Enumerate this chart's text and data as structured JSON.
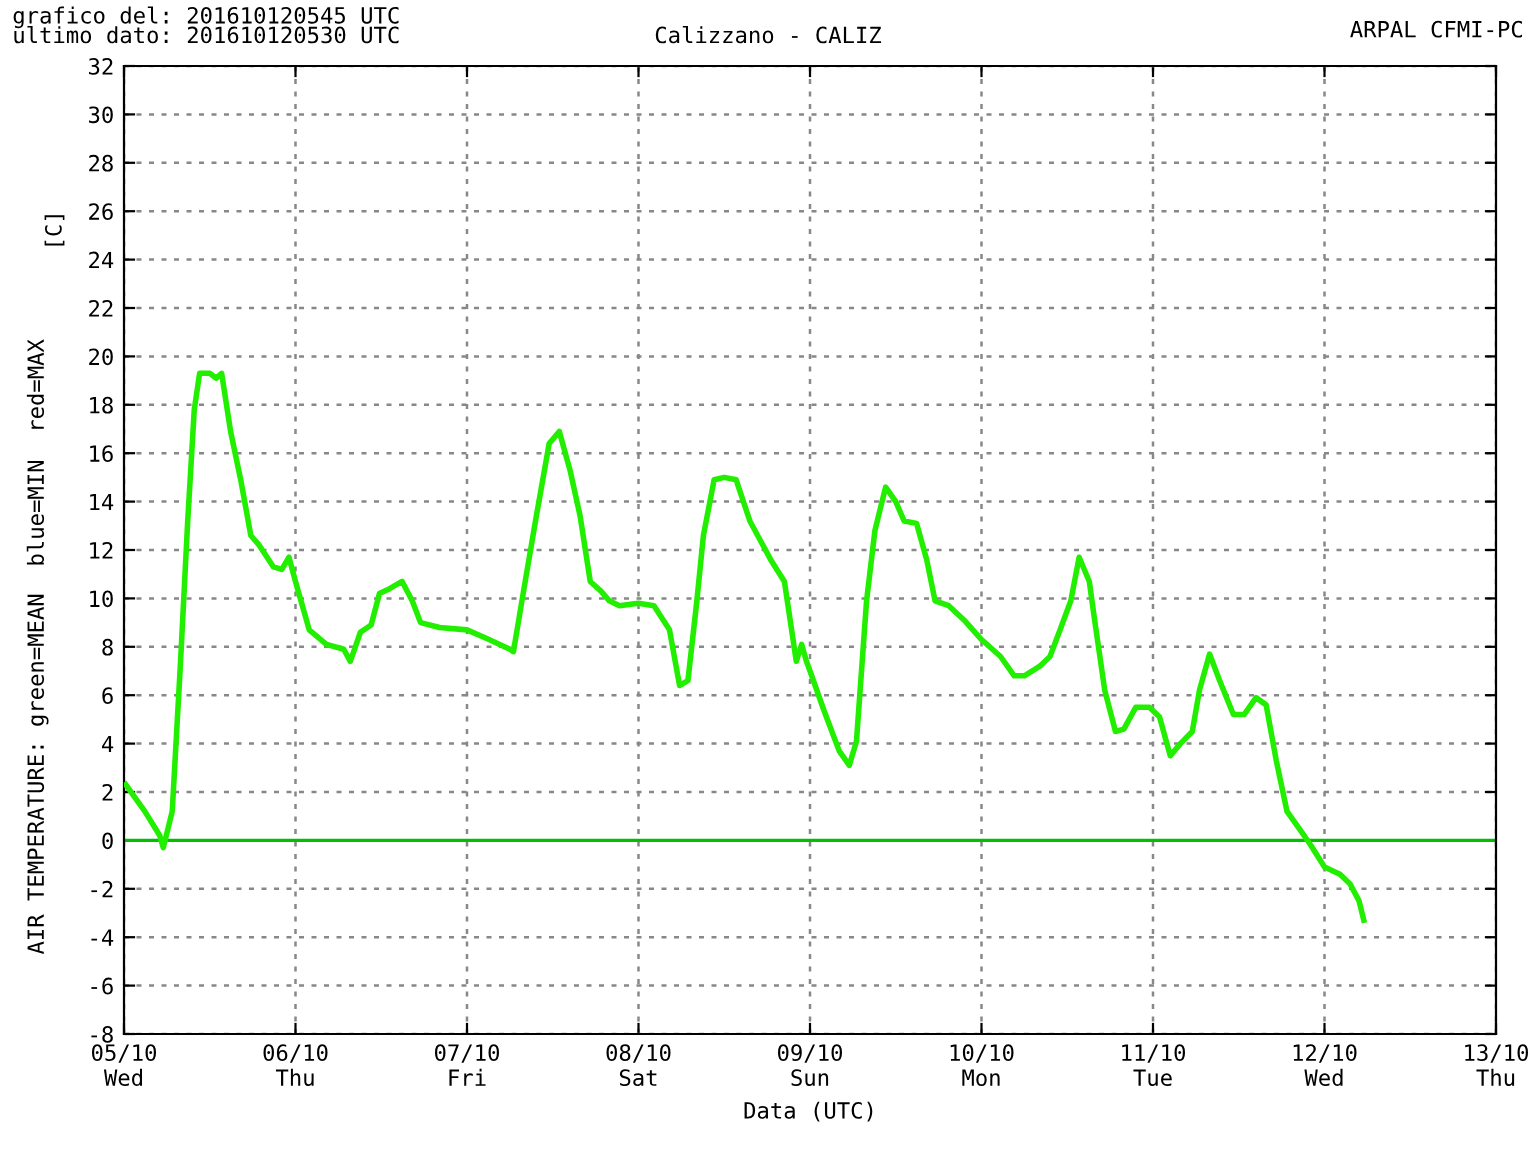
{
  "chart_data": {
    "type": "line",
    "title": "Calizzano - CALIZ",
    "xlabel": "Data (UTC)",
    "ylabel": "AIR TEMPERATURE: green=MEAN  blue=MIN  red=MAX",
    "annotations": [
      "grafico del: 201610120545 UTC",
      "ultimo dato: 201610120530 UTC",
      "ARPAL CFMI-PC",
      "[C]"
    ],
    "x": [
      "2016-10-05T00:15",
      "2016-10-05T02:55",
      "2016-10-05T05:00",
      "2016-10-05T05:30",
      "2016-10-05T06:45",
      "2016-10-05T07:55",
      "2016-10-05T08:55",
      "2016-10-05T09:50",
      "2016-10-05T10:35",
      "2016-10-05T12:00",
      "2016-10-05T12:55",
      "2016-10-05T13:40",
      "2016-10-05T14:55",
      "2016-10-05T16:20",
      "2016-10-05T17:45",
      "2016-10-05T18:55",
      "2016-10-05T20:55",
      "2016-10-05T22:05",
      "2016-10-05T23:05",
      "2016-10-06T00:00",
      "2016-10-06T01:55",
      "2016-10-06T04:20",
      "2016-10-06T06:45",
      "2016-10-06T07:40",
      "2016-10-06T09:05",
      "2016-10-06T10:35",
      "2016-10-06T11:45",
      "2016-10-06T13:10",
      "2016-10-06T14:55",
      "2016-10-06T16:20",
      "2016-10-06T17:30",
      "2016-10-06T20:10",
      "2016-10-07T00:00",
      "2016-10-07T03:05",
      "2016-10-07T06:00",
      "2016-10-07T06:30",
      "2016-10-07T07:55",
      "2016-10-07T09:35",
      "2016-10-07T11:30",
      "2016-10-07T12:55",
      "2016-10-07T14:25",
      "2016-10-07T15:50",
      "2016-10-07T17:15",
      "2016-10-07T18:45",
      "2016-10-07T19:55",
      "2016-10-07T21:20",
      "2016-10-08T00:00",
      "2016-10-08T02:10",
      "2016-10-08T04:20",
      "2016-10-08T05:45",
      "2016-10-08T06:55",
      "2016-10-08T08:10",
      "2016-10-08T09:05",
      "2016-10-08T10:35",
      "2016-10-08T12:00",
      "2016-10-08T13:40",
      "2016-10-08T15:35",
      "2016-10-08T18:30",
      "2016-10-08T20:25",
      "2016-10-08T22:05",
      "2016-10-08T22:50",
      "2016-10-08T23:30",
      "2016-10-09T00:00",
      "2016-10-09T01:55",
      "2016-10-09T04:05",
      "2016-10-09T05:30",
      "2016-10-09T06:30",
      "2016-10-09T07:55",
      "2016-10-09T09:05",
      "2016-10-09T10:35",
      "2016-10-09T12:00",
      "2016-10-09T13:10",
      "2016-10-09T14:55",
      "2016-10-09T16:20",
      "2016-10-09T17:30",
      "2016-10-09T19:25",
      "2016-10-09T21:35",
      "2016-10-10T00:00",
      "2016-10-10T02:40",
      "2016-10-10T04:35",
      "2016-10-10T06:00",
      "2016-10-10T08:10",
      "2016-10-10T09:35",
      "2016-10-10T11:00",
      "2016-10-10T12:30",
      "2016-10-10T13:40",
      "2016-10-10T15:05",
      "2016-10-10T15:50",
      "2016-10-10T17:15",
      "2016-10-10T18:45",
      "2016-10-10T19:55",
      "2016-10-10T21:35",
      "2016-10-10T23:30",
      "2016-10-11T00:55",
      "2016-10-11T02:25",
      "2016-10-11T03:50",
      "2016-10-11T05:30",
      "2016-10-11T06:30",
      "2016-10-11T07:55",
      "2016-10-11T09:20",
      "2016-10-11T11:15",
      "2016-10-11T12:45",
      "2016-10-11T14:25",
      "2016-10-11T15:50",
      "2016-10-11T17:15",
      "2016-10-11T18:45",
      "2016-10-11T20:40",
      "2016-10-11T22:05",
      "2016-10-12T00:00",
      "2016-10-12T02:10",
      "2016-10-12T03:35",
      "2016-10-12T04:50",
      "2016-10-12T05:30"
    ],
    "series": [
      {
        "color": "#22ee00",
        "values": [
          2.3,
          1.2,
          0.2,
          -0.3,
          1.2,
          7.4,
          13.2,
          17.8,
          19.3,
          19.3,
          19.1,
          19.3,
          16.9,
          14.9,
          12.6,
          12.2,
          11.3,
          11.2,
          11.7,
          10.7,
          8.7,
          8.1,
          7.9,
          7.4,
          8.6,
          8.9,
          10.2,
          10.4,
          10.7,
          9.9,
          9.0,
          8.8,
          8.7,
          8.3,
          7.9,
          7.8,
          10.3,
          13.2,
          16.4,
          16.9,
          15.3,
          13.4,
          10.7,
          10.3,
          9.9,
          9.7,
          9.8,
          9.7,
          8.7,
          6.4,
          6.6,
          9.9,
          12.6,
          14.9,
          15.0,
          14.9,
          13.2,
          11.6,
          10.7,
          7.4,
          8.1,
          7.4,
          7.0,
          5.4,
          3.7,
          3.1,
          4.1,
          9.9,
          12.8,
          14.6,
          14.0,
          13.2,
          13.1,
          11.6,
          9.9,
          9.7,
          9.1,
          8.3,
          7.6,
          6.8,
          6.8,
          7.2,
          7.6,
          8.7,
          9.9,
          11.7,
          10.7,
          9.1,
          6.2,
          4.5,
          4.6,
          5.5,
          5.5,
          5.1,
          3.5,
          4.0,
          4.5,
          6.2,
          7.7,
          6.6,
          5.2,
          5.2,
          5.9,
          5.6,
          3.3,
          1.2,
          0.4,
          -0.2,
          -1.1,
          -1.4,
          -1.8,
          -2.5,
          -3.3
        ]
      }
    ],
    "xlim": [
      "2016-10-05",
      "2016-10-13"
    ],
    "xticks": [
      {
        "value": "2016-10-05",
        "label": "05/10\nWed"
      },
      {
        "value": "2016-10-06",
        "label": "06/10\nThu"
      },
      {
        "value": "2016-10-07",
        "label": "07/10\nFri"
      },
      {
        "value": "2016-10-08",
        "label": "08/10\nSat"
      },
      {
        "value": "2016-10-09",
        "label": "09/10\nSun"
      },
      {
        "value": "2016-10-10",
        "label": "10/10\nMon"
      },
      {
        "value": "2016-10-11",
        "label": "11/10\nTue"
      },
      {
        "value": "2016-10-12",
        "label": "12/10\nWed"
      },
      {
        "value": "2016-10-13",
        "label": "13/10\nThu"
      }
    ],
    "ylim": [
      -8,
      32
    ],
    "yticks": [
      -8,
      -6,
      -4,
      -2,
      0,
      2,
      4,
      6,
      8,
      10,
      12,
      14,
      16,
      18,
      20,
      22,
      24,
      26,
      28,
      30,
      32
    ],
    "ref_lines": [
      {
        "axis": "y",
        "value": 0,
        "color": "#00c000"
      }
    ],
    "grid": true,
    "marker": "none",
    "line_style": "solid"
  }
}
